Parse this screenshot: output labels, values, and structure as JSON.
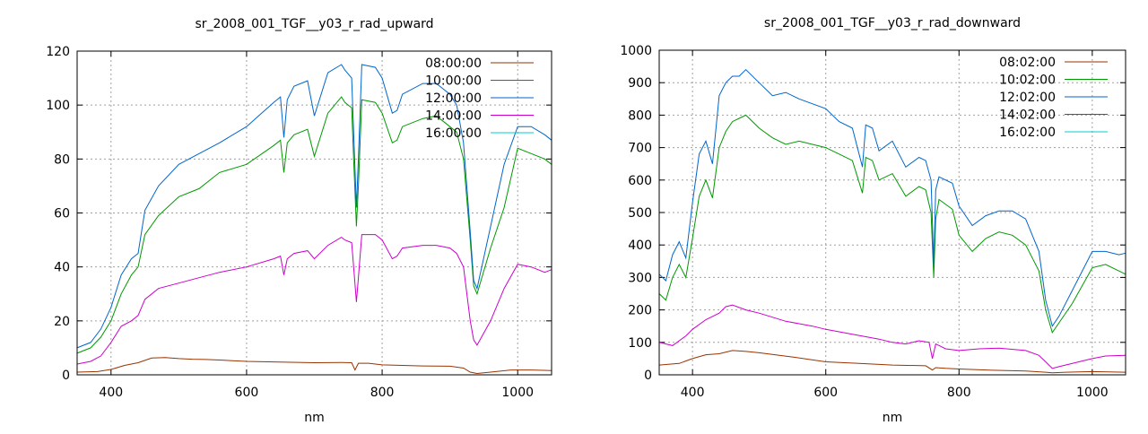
{
  "chart_data": [
    {
      "type": "line",
      "title": "sr_2008_001_TGF__y03_r_rad_upward",
      "xlabel": "nm",
      "ylabel": "",
      "xlim": [
        350,
        1050
      ],
      "ylim": [
        0,
        120
      ],
      "xticks": [
        400,
        600,
        800,
        1000
      ],
      "yticks": [
        0,
        20,
        40,
        60,
        80,
        100,
        120
      ],
      "grid": true,
      "legend_position": "top-right",
      "series": [
        {
          "name": "08:00:00",
          "color": "#993300",
          "x": [
            350,
            380,
            400,
            420,
            440,
            460,
            480,
            500,
            520,
            540,
            560,
            600,
            640,
            700,
            740,
            755,
            760,
            765,
            780,
            800,
            830,
            860,
            900,
            920,
            930,
            940,
            960,
            990,
            1020,
            1050
          ],
          "y": [
            1,
            1.2,
            2,
            3.5,
            4.5,
            6.2,
            6.4,
            6,
            5.8,
            5.7,
            5.5,
            5,
            4.8,
            4.5,
            4.6,
            4.5,
            1.8,
            4.3,
            4.3,
            3.7,
            3.5,
            3.3,
            3.2,
            2.5,
            1,
            0.5,
            1,
            1.8,
            1.8,
            1.6
          ]
        },
        {
          "name": "10:00:00",
          "color": "#009900",
          "x": [
            350,
            370,
            385,
            400,
            415,
            430,
            440,
            450,
            470,
            500,
            530,
            560,
            600,
            640,
            650,
            655,
            660,
            670,
            690,
            700,
            720,
            740,
            745,
            755,
            758,
            762,
            765,
            770,
            790,
            800,
            815,
            822,
            830,
            860,
            880,
            900,
            910,
            920,
            930,
            935,
            940,
            960,
            980,
            1000,
            1020,
            1040,
            1050
          ],
          "y": [
            8,
            10,
            14,
            20,
            30,
            37,
            40,
            52,
            59,
            66,
            69,
            75,
            78,
            85,
            87,
            75,
            86,
            89,
            91,
            81,
            97,
            103,
            101,
            99,
            80,
            55,
            70,
            102,
            101,
            97,
            86,
            87,
            92,
            95,
            96,
            92,
            90,
            80,
            50,
            33,
            30,
            47,
            62,
            84,
            82,
            80,
            78
          ]
        },
        {
          "name": "12:00:00",
          "color": "#0066cc",
          "x": [
            350,
            370,
            385,
            400,
            415,
            430,
            440,
            450,
            470,
            500,
            530,
            560,
            600,
            640,
            650,
            655,
            660,
            670,
            690,
            700,
            720,
            740,
            745,
            755,
            758,
            762,
            765,
            770,
            790,
            800,
            815,
            822,
            830,
            860,
            880,
            900,
            910,
            920,
            930,
            935,
            940,
            960,
            980,
            1000,
            1020,
            1040,
            1050
          ],
          "y": [
            10,
            12,
            17,
            25,
            37,
            43,
            45,
            61,
            70,
            78,
            82,
            86,
            92,
            101,
            103,
            88,
            102,
            107,
            109,
            96,
            112,
            115,
            113,
            110,
            90,
            62,
            80,
            115,
            114,
            110,
            97,
            98,
            104,
            108,
            108,
            104,
            100,
            86,
            53,
            35,
            32,
            55,
            78,
            92,
            92,
            89,
            87
          ]
        },
        {
          "name": "14:00:00",
          "color": "#cc00cc",
          "x": [
            350,
            370,
            385,
            400,
            415,
            430,
            440,
            450,
            470,
            500,
            530,
            560,
            600,
            640,
            650,
            655,
            660,
            670,
            690,
            700,
            720,
            740,
            745,
            755,
            758,
            762,
            765,
            770,
            790,
            800,
            815,
            822,
            830,
            860,
            880,
            900,
            910,
            920,
            930,
            935,
            940,
            960,
            980,
            1000,
            1020,
            1040,
            1050
          ],
          "y": [
            4,
            5,
            7,
            12,
            18,
            20,
            22,
            28,
            32,
            34,
            36,
            38,
            40,
            43,
            44,
            37,
            43,
            45,
            46,
            43,
            48,
            51,
            50,
            49,
            40,
            27,
            36,
            52,
            52,
            50,
            43,
            44,
            47,
            48,
            48,
            47,
            45,
            40,
            20,
            13,
            11,
            20,
            32,
            41,
            40,
            38,
            39
          ]
        },
        {
          "name": "16:00:00",
          "color": "#00cccc",
          "x": [],
          "y": []
        }
      ]
    },
    {
      "type": "line",
      "title": "sr_2008_001_TGF__y03_r_rad_downward",
      "xlabel": "nm",
      "ylabel": "",
      "xlim": [
        350,
        1050
      ],
      "ylim": [
        0,
        1000
      ],
      "xticks": [
        400,
        600,
        800,
        1000
      ],
      "yticks": [
        0,
        100,
        200,
        300,
        400,
        500,
        600,
        700,
        800,
        900,
        1000
      ],
      "grid": true,
      "legend_position": "top-right",
      "series": [
        {
          "name": "08:02:00",
          "color": "#993300",
          "x": [
            350,
            380,
            400,
            420,
            440,
            460,
            480,
            500,
            550,
            600,
            650,
            700,
            750,
            760,
            765,
            780,
            800,
            850,
            900,
            930,
            940,
            960,
            1000,
            1050
          ],
          "y": [
            30,
            35,
            50,
            62,
            65,
            75,
            72,
            68,
            55,
            40,
            35,
            30,
            28,
            15,
            22,
            20,
            18,
            14,
            12,
            8,
            6,
            8,
            10,
            8
          ]
        },
        {
          "name": "10:02:00",
          "color": "#009900",
          "x": [
            350,
            360,
            370,
            380,
            390,
            400,
            410,
            420,
            430,
            440,
            450,
            460,
            470,
            480,
            500,
            520,
            540,
            560,
            600,
            620,
            640,
            655,
            660,
            670,
            680,
            700,
            720,
            740,
            750,
            758,
            762,
            765,
            770,
            790,
            800,
            820,
            840,
            860,
            880,
            900,
            920,
            930,
            940,
            950,
            970,
            1000,
            1020,
            1040,
            1050
          ],
          "y": [
            250,
            230,
            300,
            340,
            300,
            420,
            550,
            600,
            545,
            700,
            750,
            780,
            790,
            800,
            760,
            730,
            710,
            720,
            700,
            680,
            660,
            560,
            670,
            660,
            600,
            620,
            550,
            580,
            570,
            500,
            300,
            480,
            540,
            510,
            430,
            380,
            420,
            440,
            430,
            400,
            320,
            200,
            130,
            160,
            220,
            330,
            340,
            320,
            310
          ]
        },
        {
          "name": "12:02:00",
          "color": "#0066cc",
          "x": [
            350,
            360,
            370,
            380,
            390,
            400,
            410,
            420,
            430,
            440,
            450,
            460,
            470,
            480,
            500,
            520,
            540,
            560,
            600,
            620,
            640,
            655,
            660,
            670,
            680,
            700,
            720,
            740,
            750,
            758,
            762,
            765,
            770,
            790,
            800,
            820,
            840,
            860,
            880,
            900,
            920,
            930,
            940,
            950,
            970,
            1000,
            1020,
            1040,
            1050
          ],
          "y": [
            310,
            290,
            370,
            410,
            360,
            530,
            680,
            720,
            650,
            860,
            900,
            920,
            920,
            940,
            900,
            860,
            870,
            850,
            820,
            780,
            760,
            640,
            770,
            760,
            690,
            720,
            640,
            670,
            660,
            600,
            340,
            570,
            610,
            590,
            520,
            460,
            490,
            505,
            505,
            480,
            380,
            230,
            150,
            180,
            260,
            380,
            380,
            370,
            375
          ]
        },
        {
          "name": "14:02:00",
          "color": "#cc00cc",
          "x": [
            350,
            370,
            390,
            400,
            420,
            440,
            450,
            460,
            480,
            500,
            540,
            580,
            600,
            640,
            680,
            700,
            720,
            740,
            755,
            760,
            765,
            780,
            800,
            830,
            860,
            900,
            920,
            930,
            940,
            950,
            980,
            1000,
            1020,
            1050
          ],
          "y": [
            100,
            90,
            120,
            140,
            170,
            190,
            210,
            215,
            200,
            190,
            165,
            150,
            140,
            125,
            110,
            100,
            95,
            105,
            100,
            50,
            95,
            80,
            75,
            80,
            82,
            75,
            60,
            40,
            20,
            25,
            40,
            50,
            58,
            60
          ]
        },
        {
          "name": "16:02:00",
          "color": "#00cccc",
          "x": [],
          "y": []
        }
      ]
    }
  ]
}
